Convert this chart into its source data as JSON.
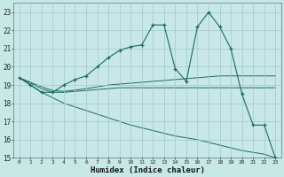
{
  "title": "",
  "xlabel": "Humidex (Indice chaleur)",
  "background_color": "#c8e8e8",
  "grid_color": "#a0c8c8",
  "line_color": "#1a6b5a",
  "x_data": [
    0,
    1,
    2,
    3,
    4,
    5,
    6,
    7,
    8,
    9,
    10,
    11,
    12,
    13,
    14,
    15,
    16,
    17,
    18,
    19,
    20,
    21,
    22,
    23
  ],
  "y_main": [
    19.4,
    19.0,
    18.6,
    18.6,
    19.0,
    19.3,
    19.5,
    20.0,
    20.5,
    20.9,
    21.1,
    21.2,
    22.3,
    22.3,
    19.9,
    19.2,
    22.2,
    23.0,
    22.2,
    21.0,
    18.5,
    16.8,
    16.8,
    15.0
  ],
  "y_line1": [
    19.4,
    19.1,
    18.8,
    18.6,
    18.6,
    18.65,
    18.7,
    18.75,
    18.8,
    18.85,
    18.85,
    18.85,
    18.85,
    18.85,
    18.85,
    18.85,
    18.85,
    18.85,
    18.85,
    18.85,
    18.85,
    18.85,
    18.85,
    18.85
  ],
  "y_line2": [
    19.4,
    19.15,
    18.9,
    18.7,
    18.65,
    18.72,
    18.8,
    18.9,
    19.0,
    19.05,
    19.1,
    19.15,
    19.2,
    19.25,
    19.3,
    19.35,
    19.4,
    19.45,
    19.5,
    19.5,
    19.5,
    19.5,
    19.5,
    19.5
  ],
  "y_line3": [
    19.4,
    19.0,
    18.6,
    18.3,
    18.0,
    17.8,
    17.6,
    17.4,
    17.2,
    17.0,
    16.8,
    16.65,
    16.5,
    16.35,
    16.2,
    16.1,
    16.0,
    15.85,
    15.7,
    15.55,
    15.4,
    15.3,
    15.2,
    15.0
  ],
  "ylim": [
    15,
    23.5
  ],
  "xlim": [
    -0.5,
    23.5
  ],
  "yticks": [
    15,
    16,
    17,
    18,
    19,
    20,
    21,
    22,
    23
  ],
  "xticks": [
    0,
    1,
    2,
    3,
    4,
    5,
    6,
    7,
    8,
    9,
    10,
    11,
    12,
    13,
    14,
    15,
    16,
    17,
    18,
    19,
    20,
    21,
    22,
    23
  ]
}
